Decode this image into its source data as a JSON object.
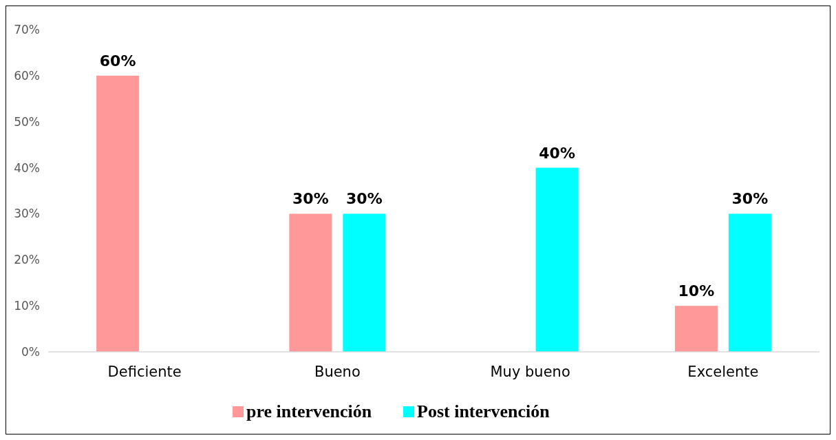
{
  "chart_data": {
    "type": "bar",
    "categories": [
      "Deficiente",
      "Bueno",
      "Muy bueno",
      "Excelente"
    ],
    "series": [
      {
        "name": "pre intervención",
        "color": "#ff9999",
        "values": [
          60,
          30,
          null,
          10
        ],
        "value_labels": [
          "60%",
          "30%",
          null,
          "10%"
        ]
      },
      {
        "name": "Post intervención",
        "color": "#00ffff",
        "values": [
          null,
          30,
          40,
          30
        ],
        "value_labels": [
          null,
          "30%",
          "40%",
          "30%"
        ]
      }
    ],
    "ylim": [
      0,
      70
    ],
    "yticks": [
      {
        "value": 0,
        "label": "0%"
      },
      {
        "value": 10,
        "label": "10%"
      },
      {
        "value": 20,
        "label": "20%"
      },
      {
        "value": 30,
        "label": "30%"
      },
      {
        "value": 40,
        "label": "40%"
      },
      {
        "value": 50,
        "label": "50%"
      },
      {
        "value": 60,
        "label": "60%"
      },
      {
        "value": 70,
        "label": "70%"
      }
    ],
    "grid": false,
    "legend": "bottom"
  }
}
